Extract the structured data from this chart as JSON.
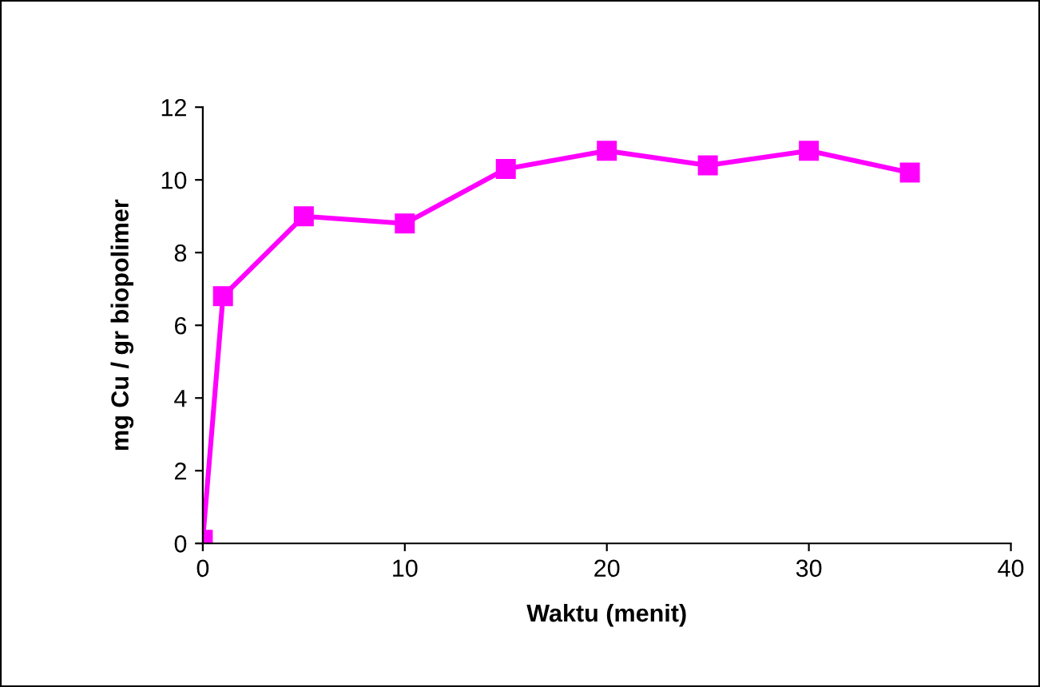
{
  "chart_data": {
    "type": "line",
    "xlabel": "Waktu (menit)",
    "ylabel": "mg Cu / gr biopolimer",
    "x": [
      0,
      1,
      5,
      10,
      15,
      20,
      25,
      30,
      35
    ],
    "series": [
      {
        "color": "#ff00ff",
        "values": [
          0.1,
          6.8,
          9.0,
          8.8,
          10.3,
          10.8,
          10.4,
          10.8,
          10.2
        ]
      }
    ],
    "xlim": [
      0,
      40
    ],
    "xticks": [
      0,
      10,
      20,
      30,
      40
    ],
    "ylim": [
      0,
      12
    ],
    "yticks": [
      0,
      2,
      4,
      6,
      8,
      10,
      12
    ],
    "marker": "square",
    "line_style": "solid",
    "grid": false
  }
}
